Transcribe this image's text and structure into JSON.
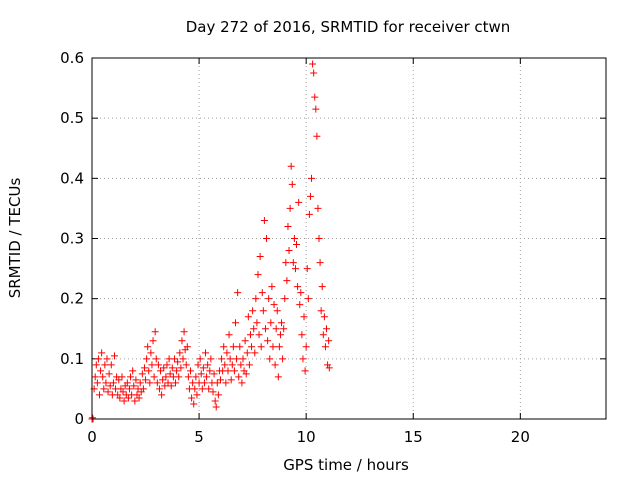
{
  "chart_data": {
    "type": "scatter",
    "title": "Day 272 of 2016, SRMTID for receiver ctwn",
    "xlabel": "GPS time / hours",
    "ylabel": "SRMTID / TECUs",
    "xlim": [
      0,
      24
    ],
    "ylim": [
      0,
      0.6
    ],
    "grid": true,
    "x_ticks": [
      0,
      5,
      10,
      15,
      20
    ],
    "x_tick_labels": [
      "0",
      "5",
      "10",
      "15",
      "20"
    ],
    "y_ticks": [
      0,
      0.1,
      0.2,
      0.3,
      0.4,
      0.5,
      0.6
    ],
    "y_tick_labels": [
      "0",
      "0.1",
      "0.2",
      "0.3",
      "0.4",
      "0.5",
      "0.6"
    ],
    "marker": "plus",
    "series_color": "#ff0000",
    "series": [
      {
        "name": "SRMTID",
        "points": [
          [
            0.0,
            0.0
          ],
          [
            0.02,
            0.002
          ],
          [
            0.05,
            0.0
          ],
          [
            0.1,
            0.05
          ],
          [
            0.15,
            0.07
          ],
          [
            0.2,
            0.09
          ],
          [
            0.25,
            0.06
          ],
          [
            0.3,
            0.1
          ],
          [
            0.35,
            0.04
          ],
          [
            0.4,
            0.08
          ],
          [
            0.45,
            0.11
          ],
          [
            0.5,
            0.07
          ],
          [
            0.55,
            0.05
          ],
          [
            0.6,
            0.09
          ],
          [
            0.65,
            0.06
          ],
          [
            0.7,
            0.1
          ],
          [
            0.75,
            0.045
          ],
          [
            0.8,
            0.075
          ],
          [
            0.85,
            0.055
          ],
          [
            0.9,
            0.09
          ],
          [
            0.95,
            0.04
          ],
          [
            1.0,
            0.06
          ],
          [
            1.05,
            0.105
          ],
          [
            1.1,
            0.05
          ],
          [
            1.15,
            0.07
          ],
          [
            1.2,
            0.04
          ],
          [
            1.25,
            0.065
          ],
          [
            1.3,
            0.035
          ],
          [
            1.35,
            0.05
          ],
          [
            1.4,
            0.07
          ],
          [
            1.45,
            0.045
          ],
          [
            1.5,
            0.03
          ],
          [
            1.55,
            0.055
          ],
          [
            1.6,
            0.04
          ],
          [
            1.65,
            0.06
          ],
          [
            1.7,
            0.035
          ],
          [
            1.75,
            0.05
          ],
          [
            1.8,
            0.07
          ],
          [
            1.85,
            0.04
          ],
          [
            1.9,
            0.08
          ],
          [
            1.95,
            0.055
          ],
          [
            2.0,
            0.03
          ],
          [
            2.05,
            0.065
          ],
          [
            2.1,
            0.04
          ],
          [
            2.15,
            0.05
          ],
          [
            2.2,
            0.035
          ],
          [
            2.25,
            0.06
          ],
          [
            2.3,
            0.045
          ],
          [
            2.35,
            0.075
          ],
          [
            2.4,
            0.05
          ],
          [
            2.45,
            0.085
          ],
          [
            2.5,
            0.065
          ],
          [
            2.55,
            0.1
          ],
          [
            2.6,
            0.12
          ],
          [
            2.65,
            0.08
          ],
          [
            2.7,
            0.06
          ],
          [
            2.75,
            0.11
          ],
          [
            2.8,
            0.09
          ],
          [
            2.85,
            0.13
          ],
          [
            2.9,
            0.07
          ],
          [
            2.95,
            0.145
          ],
          [
            3.0,
            0.1
          ],
          [
            3.05,
            0.06
          ],
          [
            3.1,
            0.09
          ],
          [
            3.15,
            0.05
          ],
          [
            3.2,
            0.08
          ],
          [
            3.25,
            0.04
          ],
          [
            3.3,
            0.065
          ],
          [
            3.35,
            0.085
          ],
          [
            3.4,
            0.055
          ],
          [
            3.45,
            0.07
          ],
          [
            3.5,
            0.09
          ],
          [
            3.55,
            0.06
          ],
          [
            3.6,
            0.1
          ],
          [
            3.65,
            0.075
          ],
          [
            3.7,
            0.055
          ],
          [
            3.75,
            0.085
          ],
          [
            3.8,
            0.07
          ],
          [
            3.85,
            0.1
          ],
          [
            3.9,
            0.06
          ],
          [
            3.95,
            0.08
          ],
          [
            4.0,
            0.095
          ],
          [
            4.05,
            0.07
          ],
          [
            4.1,
            0.11
          ],
          [
            4.15,
            0.085
          ],
          [
            4.2,
            0.13
          ],
          [
            4.25,
            0.1
          ],
          [
            4.3,
            0.145
          ],
          [
            4.35,
            0.115
          ],
          [
            4.4,
            0.09
          ],
          [
            4.45,
            0.12
          ],
          [
            4.5,
            0.07
          ],
          [
            4.55,
            0.05
          ],
          [
            4.6,
            0.08
          ],
          [
            4.65,
            0.035
          ],
          [
            4.7,
            0.06
          ],
          [
            4.75,
            0.025
          ],
          [
            4.8,
            0.05
          ],
          [
            4.85,
            0.07
          ],
          [
            4.9,
            0.04
          ],
          [
            4.95,
            0.09
          ],
          [
            5.0,
            0.06
          ],
          [
            5.05,
            0.1
          ],
          [
            5.1,
            0.075
          ],
          [
            5.15,
            0.05
          ],
          [
            5.2,
            0.085
          ],
          [
            5.25,
            0.06
          ],
          [
            5.3,
            0.11
          ],
          [
            5.35,
            0.07
          ],
          [
            5.4,
            0.09
          ],
          [
            5.45,
            0.05
          ],
          [
            5.5,
            0.08
          ],
          [
            5.55,
            0.1
          ],
          [
            5.6,
            0.06
          ],
          [
            5.65,
            0.045
          ],
          [
            5.7,
            0.075
          ],
          [
            5.75,
            0.03
          ],
          [
            5.8,
            0.02
          ],
          [
            5.85,
            0.06
          ],
          [
            5.9,
            0.04
          ],
          [
            5.95,
            0.08
          ],
          [
            6.0,
            0.065
          ],
          [
            6.05,
            0.1
          ],
          [
            6.1,
            0.08
          ],
          [
            6.15,
            0.12
          ],
          [
            6.2,
            0.09
          ],
          [
            6.25,
            0.06
          ],
          [
            6.3,
            0.11
          ],
          [
            6.35,
            0.08
          ],
          [
            6.4,
            0.14
          ],
          [
            6.45,
            0.1
          ],
          [
            6.5,
            0.065
          ],
          [
            6.55,
            0.09
          ],
          [
            6.6,
            0.12
          ],
          [
            6.65,
            0.08
          ],
          [
            6.7,
            0.16
          ],
          [
            6.75,
            0.1
          ],
          [
            6.8,
            0.21
          ],
          [
            6.85,
            0.07
          ],
          [
            6.9,
            0.12
          ],
          [
            6.95,
            0.09
          ],
          [
            7.0,
            0.06
          ],
          [
            7.05,
            0.1
          ],
          [
            7.1,
            0.08
          ],
          [
            7.15,
            0.13
          ],
          [
            7.2,
            0.075
          ],
          [
            7.25,
            0.11
          ],
          [
            7.3,
            0.17
          ],
          [
            7.35,
            0.09
          ],
          [
            7.4,
            0.14
          ],
          [
            7.45,
            0.12
          ],
          [
            7.5,
            0.18
          ],
          [
            7.55,
            0.15
          ],
          [
            7.6,
            0.11
          ],
          [
            7.65,
            0.2
          ],
          [
            7.7,
            0.16
          ],
          [
            7.75,
            0.24
          ],
          [
            7.8,
            0.14
          ],
          [
            7.85,
            0.27
          ],
          [
            7.9,
            0.12
          ],
          [
            7.95,
            0.21
          ],
          [
            8.0,
            0.18
          ],
          [
            8.05,
            0.33
          ],
          [
            8.1,
            0.15
          ],
          [
            8.15,
            0.3
          ],
          [
            8.2,
            0.13
          ],
          [
            8.25,
            0.2
          ],
          [
            8.3,
            0.1
          ],
          [
            8.35,
            0.16
          ],
          [
            8.4,
            0.22
          ],
          [
            8.45,
            0.12
          ],
          [
            8.5,
            0.19
          ],
          [
            8.55,
            0.09
          ],
          [
            8.6,
            0.15
          ],
          [
            8.65,
            0.18
          ],
          [
            8.7,
            0.07
          ],
          [
            8.75,
            0.12
          ],
          [
            8.8,
            0.14
          ],
          [
            8.85,
            0.16
          ],
          [
            8.9,
            0.1
          ],
          [
            8.95,
            0.15
          ],
          [
            9.0,
            0.2
          ],
          [
            9.05,
            0.26
          ],
          [
            9.1,
            0.23
          ],
          [
            9.15,
            0.32
          ],
          [
            9.2,
            0.28
          ],
          [
            9.25,
            0.35
          ],
          [
            9.3,
            0.42
          ],
          [
            9.35,
            0.39
          ],
          [
            9.4,
            0.26
          ],
          [
            9.45,
            0.3
          ],
          [
            9.5,
            0.25
          ],
          [
            9.55,
            0.29
          ],
          [
            9.6,
            0.22
          ],
          [
            9.65,
            0.36
          ],
          [
            9.7,
            0.19
          ],
          [
            9.75,
            0.21
          ],
          [
            9.8,
            0.14
          ],
          [
            9.85,
            0.1
          ],
          [
            9.9,
            0.17
          ],
          [
            9.95,
            0.08
          ],
          [
            10.0,
            0.12
          ],
          [
            10.05,
            0.25
          ],
          [
            10.1,
            0.2
          ],
          [
            10.15,
            0.34
          ],
          [
            10.2,
            0.37
          ],
          [
            10.25,
            0.4
          ],
          [
            10.3,
            0.59
          ],
          [
            10.35,
            0.575
          ],
          [
            10.4,
            0.535
          ],
          [
            10.45,
            0.515
          ],
          [
            10.5,
            0.47
          ],
          [
            10.55,
            0.35
          ],
          [
            10.6,
            0.3
          ],
          [
            10.65,
            0.26
          ],
          [
            10.7,
            0.18
          ],
          [
            10.75,
            0.22
          ],
          [
            10.8,
            0.14
          ],
          [
            10.85,
            0.17
          ],
          [
            10.9,
            0.12
          ],
          [
            10.95,
            0.15
          ],
          [
            11.0,
            0.09
          ],
          [
            11.05,
            0.13
          ],
          [
            11.08,
            0.085
          ]
        ]
      }
    ]
  }
}
